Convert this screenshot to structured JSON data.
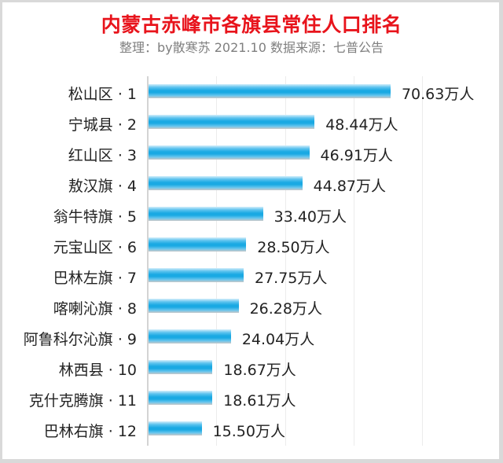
{
  "header": {
    "title": "内蒙古赤峰市各旗县常住人口排名",
    "subtitle": "整理：by散寒苏  2021.10  数据来源：七普公告"
  },
  "chart_data": {
    "type": "bar",
    "orientation": "horizontal",
    "title": "内蒙古赤峰市各旗县常住人口排名",
    "subtitle": "整理：by散寒苏  2021.10  数据来源：七普公告",
    "xlabel": "",
    "ylabel": "",
    "unit": "万人",
    "xlim": [
      0,
      80
    ],
    "grid": true,
    "gridline_step": 20,
    "legend": "none",
    "bar_color": "#1aa9e3",
    "categories": [
      "松山区 · 1",
      "宁城县 · 2",
      "红山区 · 3",
      "敖汉旗 · 4",
      "翁牛特旗 · 5",
      "元宝山区 · 6",
      "巴林左旗 · 7",
      "喀喇沁旗 · 8",
      "阿鲁科尔沁旗 · 9",
      "林西县 · 10",
      "克什克腾旗 · 11",
      "巴林右旗 · 12"
    ],
    "values": [
      70.63,
      48.44,
      46.91,
      44.87,
      33.4,
      28.5,
      27.75,
      26.28,
      24.04,
      18.67,
      18.61,
      15.5
    ],
    "value_labels": [
      "70.63万人",
      "48.44万人",
      "46.91万人",
      "44.87万人",
      "33.40万人",
      "28.50万人",
      "27.75万人",
      "26.28万人",
      "24.04万人",
      "18.67万人",
      "18.61万人",
      "15.50万人"
    ]
  }
}
